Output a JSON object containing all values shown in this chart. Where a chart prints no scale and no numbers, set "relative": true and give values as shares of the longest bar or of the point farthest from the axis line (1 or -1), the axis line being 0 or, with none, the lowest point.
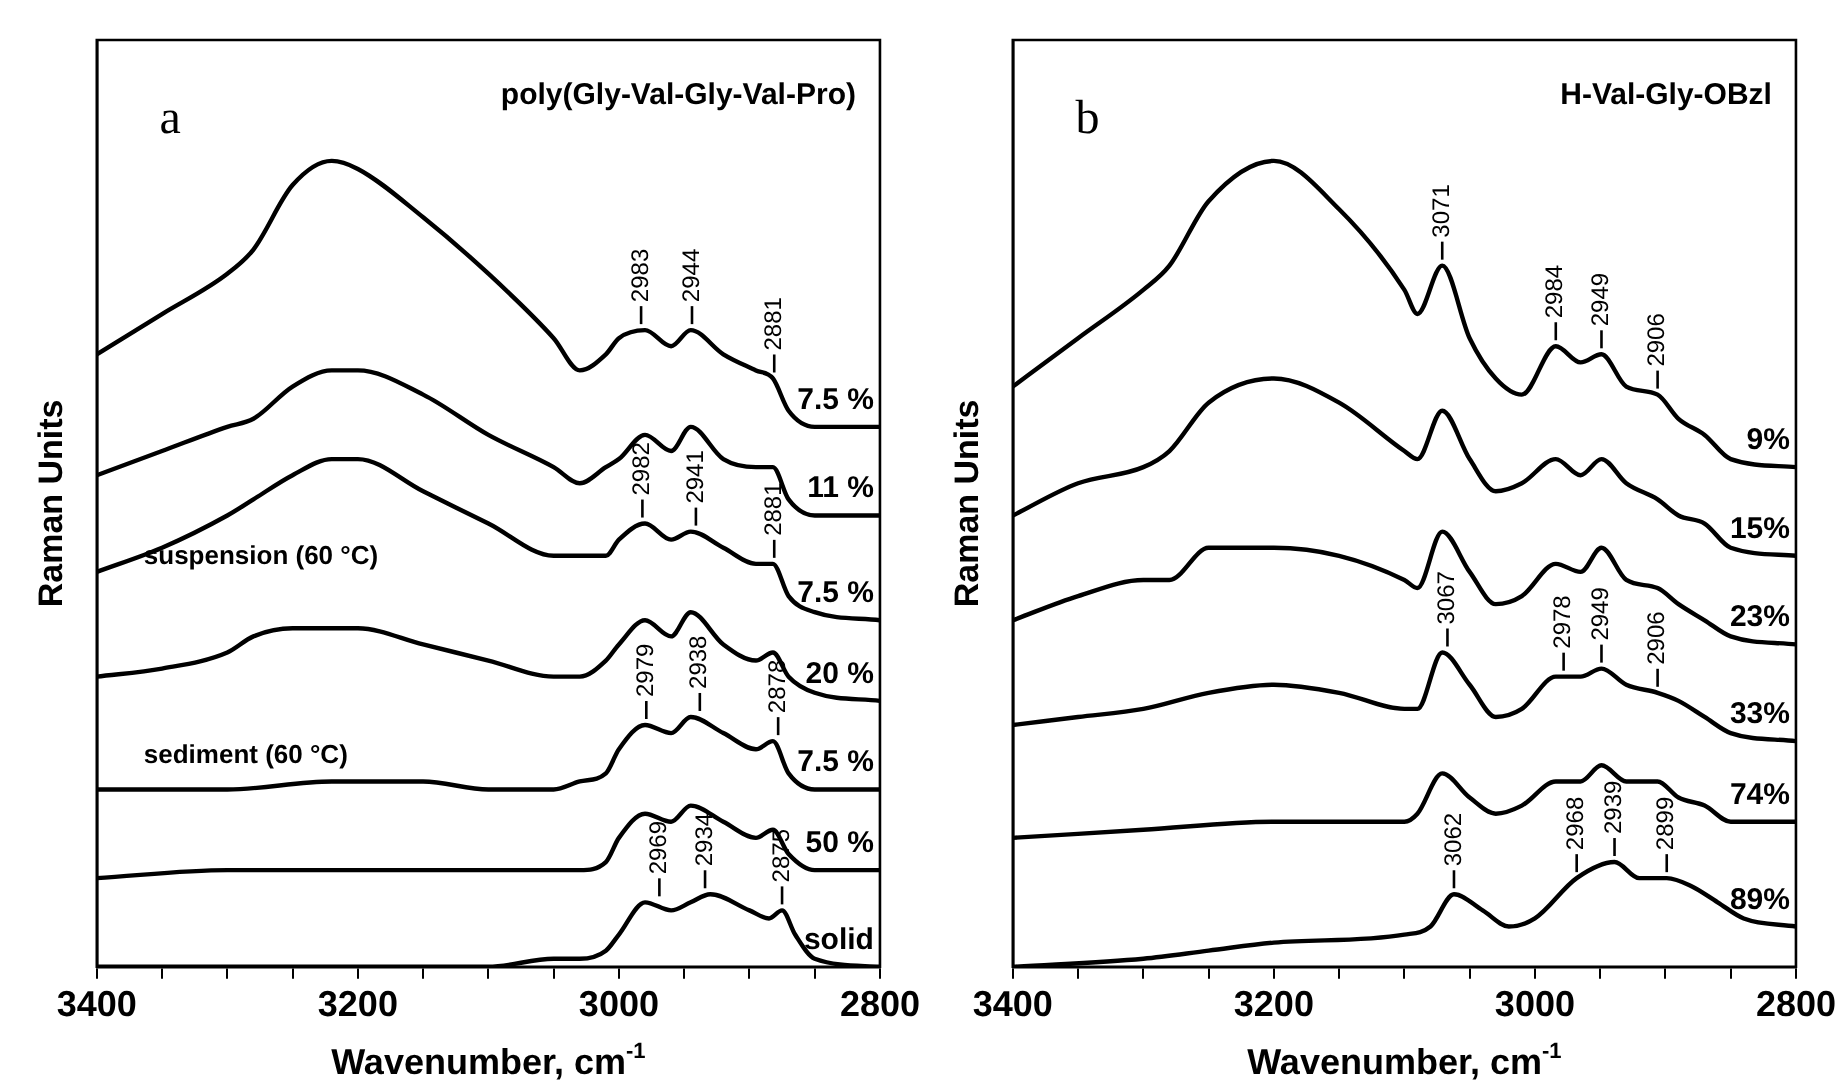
{
  "chart_data": [
    {
      "type": "line",
      "title": "poly(Gly-Val-Gly-Val-Pro)",
      "xlabel": "Wavenumber, cm$^{-1}$",
      "ylabel": "Raman Units",
      "relative": true,
      "xlim": [
        3400,
        2800
      ],
      "xticks": [
        3400,
        {
          "value": 3350,
          "label": null
        },
        {
          "value": 3300,
          "label": null
        },
        {
          "value": 3250,
          "label": null
        },
        3200,
        {
          "value": 3150,
          "label": null
        },
        {
          "value": 3100,
          "label": null
        },
        {
          "value": 3050,
          "label": null
        },
        3000,
        {
          "value": 2950,
          "label": null
        },
        {
          "value": 2900,
          "label": null
        },
        {
          "value": 2850,
          "label": null
        },
        2800
      ],
      "annotations": [
        "a",
        {
          "text": "2983",
          "x": 2983,
          "y": 0.79
        },
        {
          "text": "2944",
          "x": 2944,
          "y": 0.79
        },
        {
          "text": "2881",
          "x": 2881,
          "y": 0.73
        },
        {
          "text": "2982",
          "x": 2982,
          "y": 0.55
        },
        {
          "text": "2941",
          "x": 2941,
          "y": 0.54
        },
        {
          "text": "2881",
          "x": 2881,
          "y": 0.5
        },
        {
          "text": "2979",
          "x": 2979,
          "y": 0.3
        },
        {
          "text": "2938",
          "x": 2938,
          "y": 0.31
        },
        {
          "text": "2878",
          "x": 2878,
          "y": 0.28
        },
        {
          "text": "2969",
          "x": 2969,
          "y": 0.08
        },
        {
          "text": "2934",
          "x": 2934,
          "y": 0.09
        },
        {
          "text": "2875",
          "x": 2875,
          "y": 0.07
        },
        "suspension (60 °C)",
        "sediment (60 °C)"
      ],
      "legend": "right",
      "series": [
        {
          "name": "7.5 %",
          "color": "#000000",
          "x": [
            3400,
            3350,
            3300,
            3280,
            3250,
            3220,
            3200,
            3150,
            3100,
            3050,
            3030,
            3010,
            3000,
            2980,
            2960,
            2945,
            2920,
            2895,
            2882,
            2870,
            2850,
            2800
          ],
          "values": [
            0.76,
            0.81,
            0.86,
            0.89,
            0.97,
            1,
            0.99,
            0.93,
            0.86,
            0.78,
            0.74,
            0.76,
            0.78,
            0.79,
            0.77,
            0.79,
            0.76,
            0.74,
            0.73,
            0.69,
            0.67,
            0.67
          ]
        },
        {
          "name": "11 %",
          "color": "#000000",
          "x": [
            3400,
            3350,
            3300,
            3280,
            3250,
            3220,
            3200,
            3150,
            3100,
            3050,
            3030,
            3010,
            3000,
            2980,
            2960,
            2945,
            2920,
            2895,
            2882,
            2870,
            2850,
            2800
          ],
          "values": [
            0.61,
            0.64,
            0.67,
            0.68,
            0.72,
            0.74,
            0.74,
            0.71,
            0.66,
            0.62,
            0.6,
            0.62,
            0.63,
            0.66,
            0.64,
            0.67,
            0.63,
            0.62,
            0.62,
            0.58,
            0.56,
            0.56
          ]
        },
        {
          "name": "7.5 %",
          "color": "#000000",
          "x": [
            3400,
            3350,
            3300,
            3280,
            3250,
            3220,
            3200,
            3150,
            3100,
            3050,
            3030,
            3010,
            3000,
            2980,
            2960,
            2945,
            2920,
            2895,
            2882,
            2870,
            2850,
            2800
          ],
          "values": [
            0.49,
            0.52,
            0.56,
            0.58,
            0.61,
            0.63,
            0.63,
            0.59,
            0.55,
            0.51,
            0.51,
            0.51,
            0.53,
            0.55,
            0.53,
            0.54,
            0.52,
            0.5,
            0.5,
            0.46,
            0.44,
            0.43
          ]
        },
        {
          "name": "20 %",
          "color": "#000000",
          "x": [
            3400,
            3350,
            3300,
            3280,
            3250,
            3220,
            3200,
            3150,
            3100,
            3050,
            3030,
            3010,
            3000,
            2980,
            2960,
            2945,
            2920,
            2895,
            2882,
            2870,
            2850,
            2800
          ],
          "values": [
            0.36,
            0.37,
            0.39,
            0.41,
            0.42,
            0.42,
            0.42,
            0.4,
            0.38,
            0.36,
            0.36,
            0.38,
            0.4,
            0.43,
            0.41,
            0.44,
            0.4,
            0.38,
            0.39,
            0.36,
            0.34,
            0.33
          ]
        },
        {
          "name": "7.5 %",
          "color": "#000000",
          "x": [
            3400,
            3300,
            3220,
            3150,
            3100,
            3050,
            3030,
            3010,
            3000,
            2980,
            2960,
            2945,
            2920,
            2895,
            2882,
            2870,
            2850,
            2800
          ],
          "values": [
            0.22,
            0.22,
            0.23,
            0.23,
            0.22,
            0.22,
            0.23,
            0.24,
            0.27,
            0.3,
            0.29,
            0.31,
            0.29,
            0.27,
            0.28,
            0.24,
            0.22,
            0.22
          ]
        },
        {
          "name": "50 %",
          "color": "#000000",
          "x": [
            3400,
            3300,
            3200,
            3100,
            3050,
            3030,
            3010,
            3000,
            2980,
            2960,
            2945,
            2920,
            2895,
            2882,
            2870,
            2850,
            2800
          ],
          "values": [
            0.11,
            0.12,
            0.12,
            0.12,
            0.12,
            0.12,
            0.13,
            0.16,
            0.19,
            0.18,
            0.2,
            0.18,
            0.16,
            0.17,
            0.14,
            0.12,
            0.12
          ]
        },
        {
          "name": "solid",
          "color": "#000000",
          "x": [
            3400,
            3200,
            3100,
            3050,
            3030,
            3010,
            3000,
            2980,
            2960,
            2945,
            2930,
            2900,
            2885,
            2875,
            2865,
            2850,
            2800
          ],
          "values": [
            0,
            0,
            0,
            0.01,
            0.01,
            0.02,
            0.04,
            0.08,
            0.07,
            0.08,
            0.09,
            0.07,
            0.06,
            0.07,
            0.04,
            0.01,
            0
          ]
        }
      ]
    },
    {
      "type": "line",
      "title": "H-Val-Gly-OBzl",
      "xlabel": "Wavenumber, cm$^{-1}$",
      "ylabel": "Raman Units",
      "relative": true,
      "xlim": [
        3400,
        2800
      ],
      "xticks": [
        3400,
        {
          "value": 3350,
          "label": null
        },
        {
          "value": 3300,
          "label": null
        },
        {
          "value": 3250,
          "label": null
        },
        3200,
        {
          "value": 3150,
          "label": null
        },
        {
          "value": 3100,
          "label": null
        },
        {
          "value": 3050,
          "label": null
        },
        3000,
        {
          "value": 2950,
          "label": null
        },
        {
          "value": 2900,
          "label": null
        },
        {
          "value": 2850,
          "label": null
        },
        2800
      ],
      "annotations": [
        "b",
        {
          "text": "3071",
          "x": 3071,
          "y": 0.87
        },
        {
          "text": "2984",
          "x": 2984,
          "y": 0.77
        },
        {
          "text": "2949",
          "x": 2949,
          "y": 0.76
        },
        {
          "text": "2906",
          "x": 2906,
          "y": 0.71
        },
        {
          "text": "3067",
          "x": 3067,
          "y": 0.39
        },
        {
          "text": "2978",
          "x": 2978,
          "y": 0.36
        },
        {
          "text": "2949",
          "x": 2949,
          "y": 0.37
        },
        {
          "text": "2906",
          "x": 2906,
          "y": 0.34
        },
        {
          "text": "3062",
          "x": 3062,
          "y": 0.09
        },
        {
          "text": "2968",
          "x": 2968,
          "y": 0.11
        },
        {
          "text": "2939",
          "x": 2939,
          "y": 0.13
        },
        {
          "text": "2899",
          "x": 2899,
          "y": 0.11
        }
      ],
      "legend": "right",
      "series": [
        {
          "name": "9%",
          "color": "#000000",
          "x": [
            3400,
            3350,
            3300,
            3280,
            3250,
            3200,
            3150,
            3100,
            3090,
            3071,
            3050,
            3030,
            3010,
            2984,
            2965,
            2949,
            2930,
            2906,
            2890,
            2870,
            2850,
            2800
          ],
          "values": [
            0.72,
            0.78,
            0.84,
            0.87,
            0.95,
            1,
            0.94,
            0.84,
            0.81,
            0.87,
            0.78,
            0.73,
            0.71,
            0.77,
            0.75,
            0.76,
            0.72,
            0.71,
            0.68,
            0.66,
            0.63,
            0.62
          ]
        },
        {
          "name": "15%",
          "color": "#000000",
          "x": [
            3400,
            3350,
            3300,
            3280,
            3250,
            3200,
            3150,
            3100,
            3090,
            3071,
            3050,
            3030,
            3010,
            2984,
            2965,
            2949,
            2930,
            2906,
            2890,
            2870,
            2850,
            2800
          ],
          "values": [
            0.56,
            0.6,
            0.62,
            0.64,
            0.7,
            0.73,
            0.7,
            0.64,
            0.63,
            0.69,
            0.63,
            0.59,
            0.6,
            0.63,
            0.61,
            0.63,
            0.6,
            0.58,
            0.56,
            0.55,
            0.52,
            0.51
          ]
        },
        {
          "name": "23%",
          "color": "#000000",
          "x": [
            3400,
            3350,
            3300,
            3280,
            3250,
            3200,
            3150,
            3100,
            3090,
            3071,
            3050,
            3030,
            3010,
            2984,
            2965,
            2949,
            2930,
            2906,
            2890,
            2870,
            2850,
            2800
          ],
          "values": [
            0.43,
            0.46,
            0.48,
            0.48,
            0.52,
            0.52,
            0.51,
            0.48,
            0.47,
            0.54,
            0.49,
            0.45,
            0.46,
            0.5,
            0.49,
            0.52,
            0.48,
            0.47,
            0.45,
            0.43,
            0.41,
            0.4
          ]
        },
        {
          "name": "33%",
          "color": "#000000",
          "x": [
            3400,
            3350,
            3300,
            3250,
            3200,
            3150,
            3100,
            3090,
            3071,
            3050,
            3030,
            3010,
            2984,
            2965,
            2949,
            2930,
            2906,
            2890,
            2870,
            2850,
            2800
          ],
          "values": [
            0.3,
            0.31,
            0.32,
            0.34,
            0.35,
            0.34,
            0.32,
            0.32,
            0.39,
            0.35,
            0.31,
            0.32,
            0.36,
            0.36,
            0.37,
            0.35,
            0.34,
            0.33,
            0.31,
            0.29,
            0.28
          ]
        },
        {
          "name": "74%",
          "color": "#000000",
          "x": [
            3400,
            3300,
            3200,
            3100,
            3090,
            3071,
            3050,
            3030,
            3010,
            2984,
            2965,
            2949,
            2930,
            2906,
            2890,
            2870,
            2850,
            2800
          ],
          "values": [
            0.16,
            0.17,
            0.18,
            0.18,
            0.19,
            0.24,
            0.21,
            0.19,
            0.2,
            0.23,
            0.23,
            0.25,
            0.23,
            0.23,
            0.21,
            0.2,
            0.18,
            0.18
          ]
        },
        {
          "name": "89%",
          "color": "#000000",
          "x": [
            3400,
            3300,
            3250,
            3200,
            3100,
            3080,
            3062,
            3040,
            3020,
            3000,
            2968,
            2939,
            2920,
            2899,
            2880,
            2860,
            2840,
            2800
          ],
          "values": [
            0,
            0.01,
            0.02,
            0.03,
            0.04,
            0.05,
            0.09,
            0.07,
            0.05,
            0.06,
            0.11,
            0.13,
            0.11,
            0.11,
            0.1,
            0.08,
            0.06,
            0.05
          ]
        }
      ]
    }
  ]
}
